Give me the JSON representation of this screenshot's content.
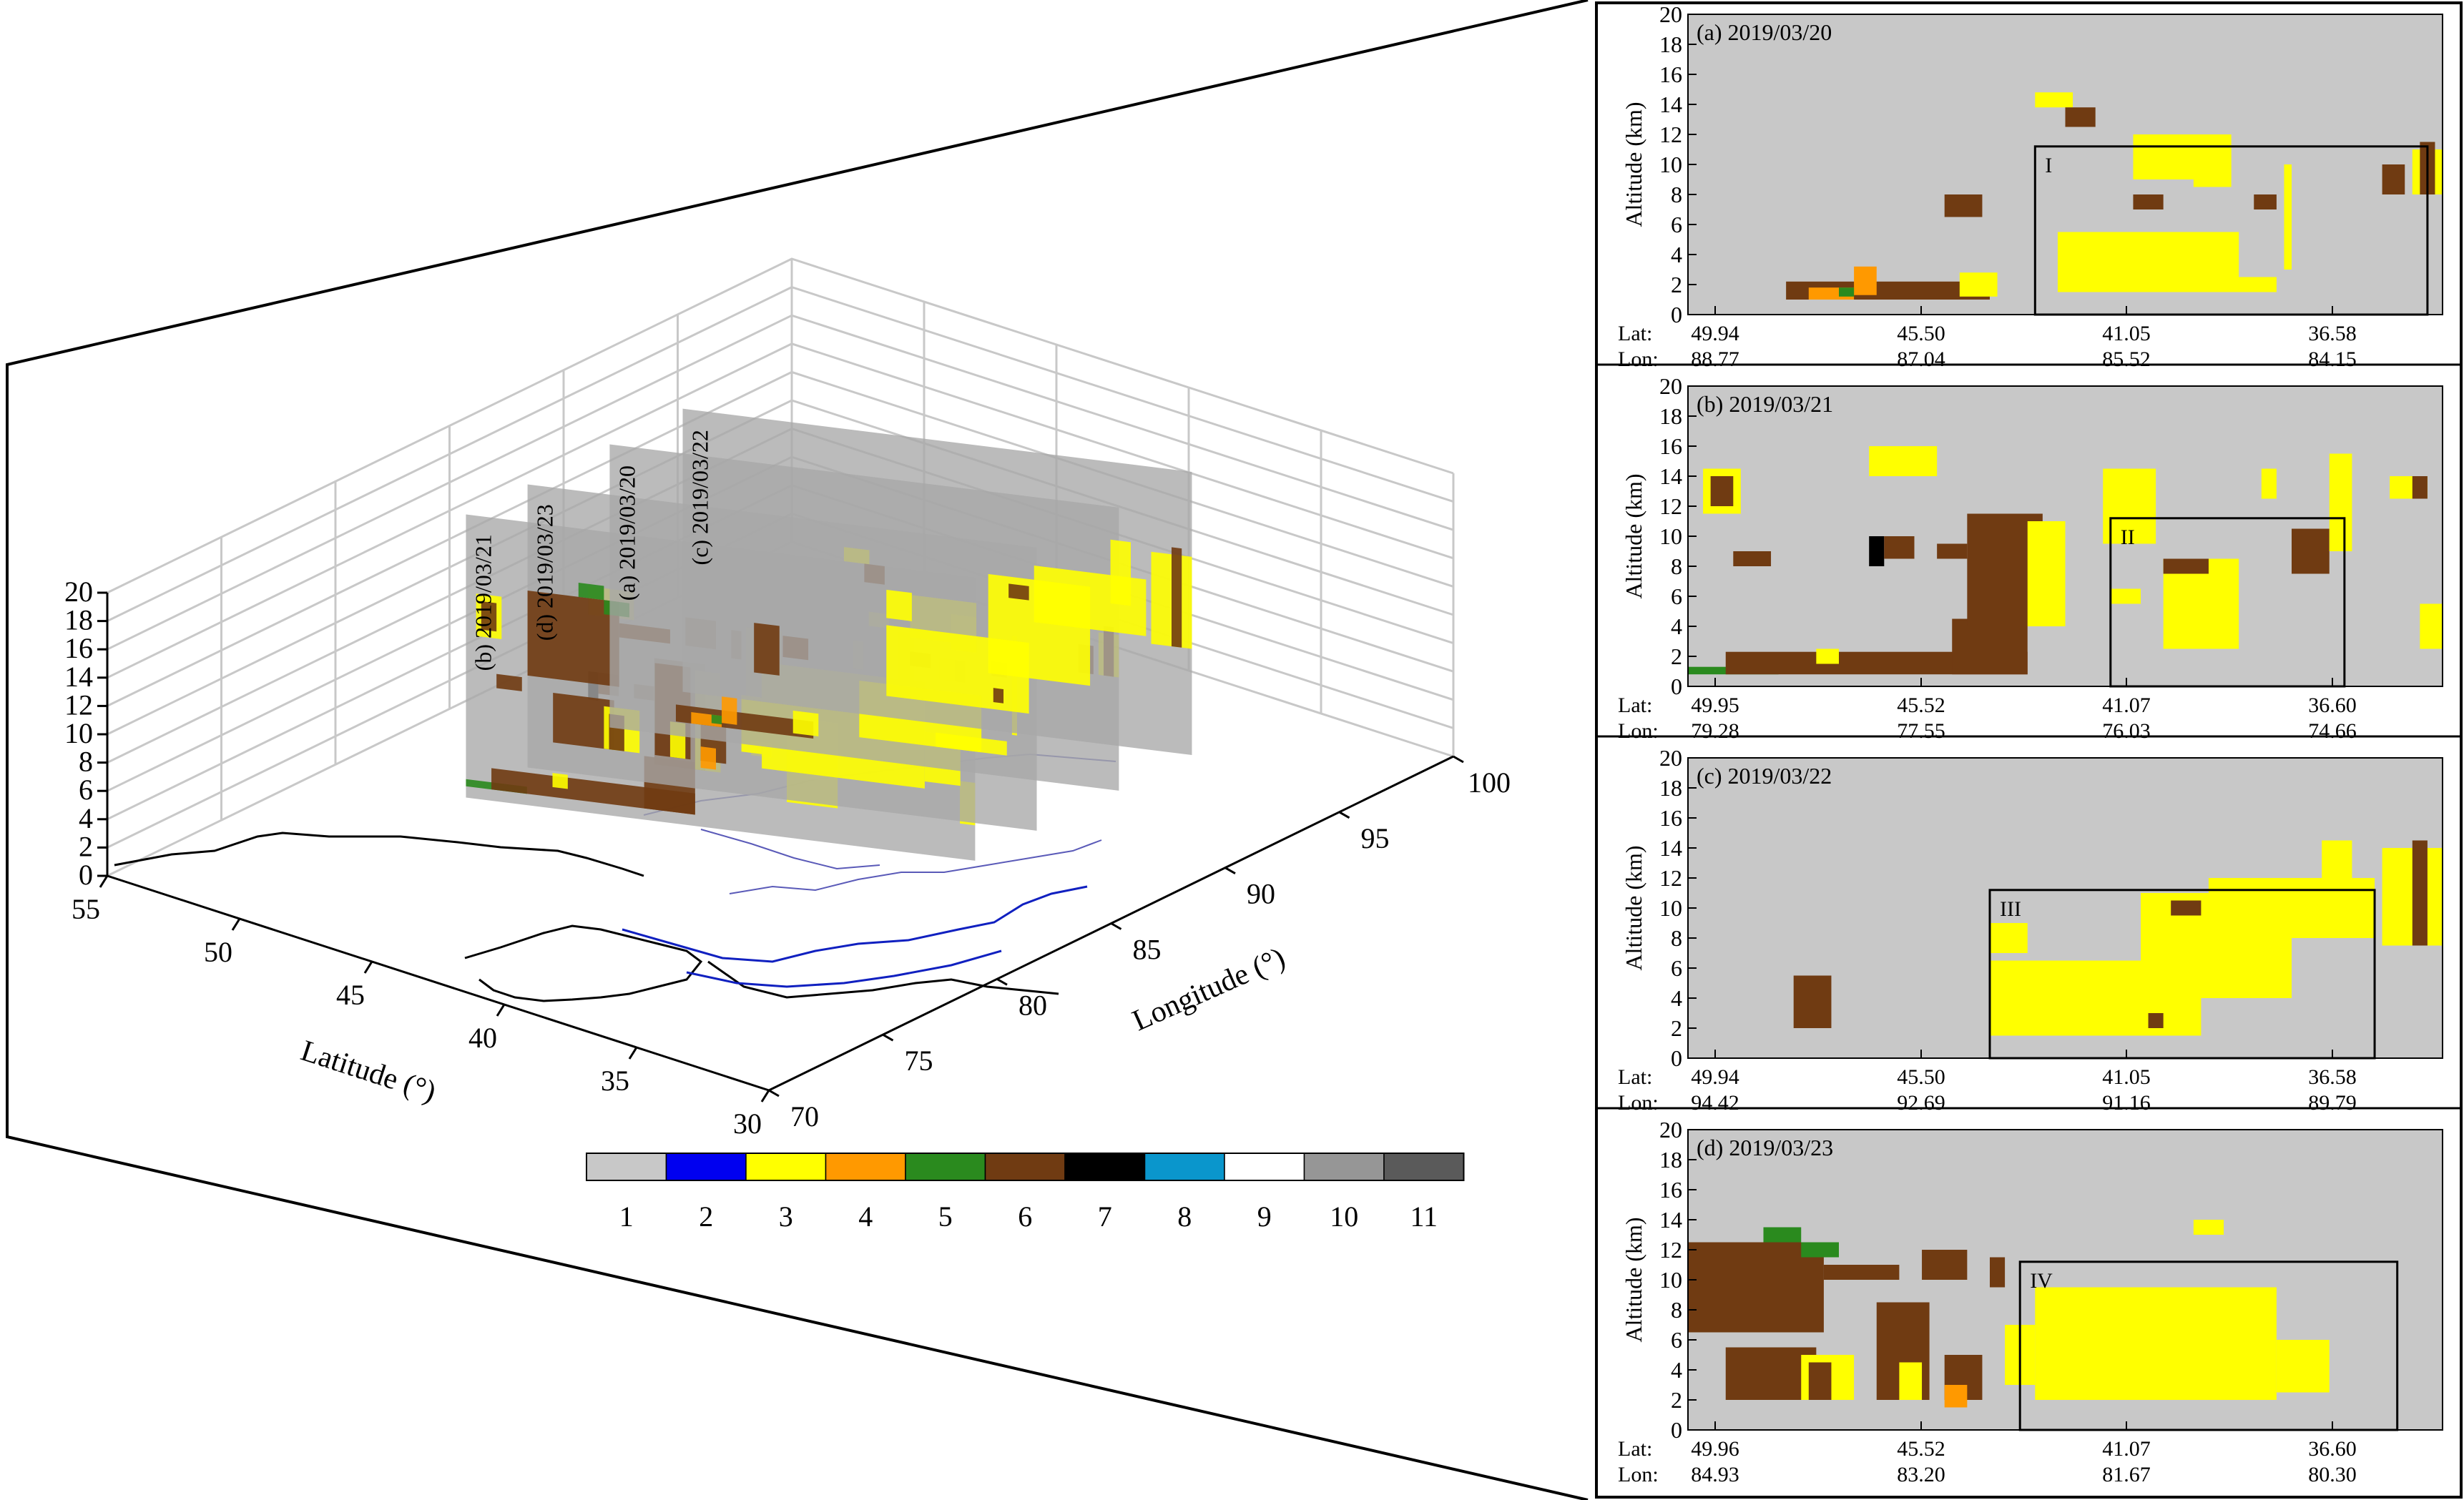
{
  "chart_data": {
    "type": "heatmap",
    "overview": {
      "type": "3d-curtain",
      "axes": {
        "xlabel": "Latitude (°)",
        "ylabel": "Longitude (°)",
        "zlabel": "",
        "latitude_ticks": [
          "30",
          "35",
          "40",
          "45",
          "50",
          "55"
        ],
        "longitude_ticks": [
          "70",
          "75",
          "80",
          "85",
          "90",
          "95",
          "100"
        ],
        "altitude_ticks": [
          "0",
          "2",
          "4",
          "6",
          "8",
          "10",
          "12",
          "14",
          "16",
          "18",
          "20"
        ],
        "latitude_range": [
          30,
          55
        ],
        "longitude_range": [
          70,
          100
        ],
        "altitude_range": [
          0,
          20
        ],
        "grid": true
      },
      "curtain_labels": [
        "(b) 2019/03/21",
        "(d) 2019/03/23",
        "(a) 2019/03/20",
        "(c) 2019/03/22"
      ]
    },
    "colorbar": {
      "categories": [
        "1",
        "2",
        "3",
        "4",
        "5",
        "6",
        "7",
        "8",
        "9",
        "10",
        "11"
      ],
      "colors": [
        "#c8c8c8",
        "#0000f0",
        "#ffff00",
        "#ff9900",
        "#2a8a1e",
        "#703b12",
        "#000000",
        "#0a96cc",
        "#ffffff",
        "#969696",
        "#5a5a5a"
      ]
    },
    "panels": [
      {
        "title": "(a) 2019/03/20",
        "ylabel": "Altitude (km)",
        "yticks": [
          "0",
          "2",
          "4",
          "6",
          "8",
          "10",
          "12",
          "14",
          "16",
          "18",
          "20"
        ],
        "ylim": [
          0,
          20
        ],
        "lat_label": "Lat:",
        "lon_label": "Lon:",
        "lat": [
          "49.94",
          "45.50",
          "41.05",
          "36.58"
        ],
        "lon": [
          "88.77",
          "87.04",
          "85.52",
          "84.15"
        ],
        "box_label": "I",
        "box": {
          "x": [
            0.46,
            0.98
          ],
          "alt": [
            0,
            11.2
          ]
        },
        "cells": [
          {
            "x": [
              0.13,
              0.4
            ],
            "alt": [
              1.0,
              2.2
            ],
            "cat": 6
          },
          {
            "x": [
              0.16,
              0.22
            ],
            "alt": [
              1.0,
              1.8
            ],
            "cat": 4
          },
          {
            "x": [
              0.22,
              0.25
            ],
            "alt": [
              1.3,
              3.2
            ],
            "cat": 4
          },
          {
            "x": [
              0.2,
              0.22
            ],
            "alt": [
              1.2,
              1.8
            ],
            "cat": 5
          },
          {
            "x": [
              0.36,
              0.41
            ],
            "alt": [
              1.2,
              2.8
            ],
            "cat": 3
          },
          {
            "x": [
              0.34,
              0.39
            ],
            "alt": [
              6.5,
              8.0
            ],
            "cat": 6
          },
          {
            "x": [
              0.46,
              0.51
            ],
            "alt": [
              13.8,
              14.8
            ],
            "cat": 3
          },
          {
            "x": [
              0.5,
              0.54
            ],
            "alt": [
              12.5,
              13.8
            ],
            "cat": 6
          },
          {
            "x": [
              0.49,
              0.73
            ],
            "alt": [
              1.5,
              5.5
            ],
            "cat": 3
          },
          {
            "x": [
              0.64,
              0.78
            ],
            "alt": [
              1.5,
              2.5
            ],
            "cat": 3
          },
          {
            "x": [
              0.59,
              0.72
            ],
            "alt": [
              9.0,
              12.0
            ],
            "cat": 3
          },
          {
            "x": [
              0.67,
              0.72
            ],
            "alt": [
              8.5,
              11.0
            ],
            "cat": 3
          },
          {
            "x": [
              0.59,
              0.63
            ],
            "alt": [
              7.0,
              8.0
            ],
            "cat": 6
          },
          {
            "x": [
              0.75,
              0.78
            ],
            "alt": [
              7.0,
              8.0
            ],
            "cat": 6
          },
          {
            "x": [
              0.79,
              0.8
            ],
            "alt": [
              3.0,
              10.0
            ],
            "cat": 3
          },
          {
            "x": [
              0.92,
              0.95
            ],
            "alt": [
              8.0,
              10.0
            ],
            "cat": 6
          },
          {
            "x": [
              0.96,
              1.0
            ],
            "alt": [
              8.0,
              11.0
            ],
            "cat": 3
          },
          {
            "x": [
              0.97,
              0.99
            ],
            "alt": [
              8.0,
              11.5
            ],
            "cat": 6
          }
        ]
      },
      {
        "title": "(b) 2019/03/21",
        "ylabel": "Altitude (km)",
        "yticks": [
          "0",
          "2",
          "4",
          "6",
          "8",
          "10",
          "12",
          "14",
          "16",
          "18",
          "20"
        ],
        "ylim": [
          0,
          20
        ],
        "lat_label": "Lat:",
        "lon_label": "Lon:",
        "lat": [
          "49.95",
          "45.52",
          "41.07",
          "36.60"
        ],
        "lon": [
          "79.28",
          "77.55",
          "76.03",
          "74.66"
        ],
        "box_label": "II",
        "box": {
          "x": [
            0.56,
            0.87
          ],
          "alt": [
            0,
            11.2
          ]
        },
        "cells": [
          {
            "x": [
              0.0,
              0.12
            ],
            "alt": [
              0.8,
              1.3
            ],
            "cat": 5
          },
          {
            "x": [
              0.05,
              0.45
            ],
            "alt": [
              0.8,
              2.3
            ],
            "cat": 6
          },
          {
            "x": [
              0.17,
              0.2
            ],
            "alt": [
              1.5,
              2.5
            ],
            "cat": 3
          },
          {
            "x": [
              0.35,
              0.45
            ],
            "alt": [
              0.8,
              4.5
            ],
            "cat": 6
          },
          {
            "x": [
              0.37,
              0.47
            ],
            "alt": [
              4.0,
              11.5
            ],
            "cat": 6
          },
          {
            "x": [
              0.45,
              0.5
            ],
            "alt": [
              4.0,
              11.0
            ],
            "cat": 3
          },
          {
            "x": [
              0.02,
              0.07
            ],
            "alt": [
              11.5,
              14.5
            ],
            "cat": 3
          },
          {
            "x": [
              0.03,
              0.06
            ],
            "alt": [
              12.0,
              14.0
            ],
            "cat": 6
          },
          {
            "x": [
              0.06,
              0.11
            ],
            "alt": [
              8.0,
              9.0
            ],
            "cat": 6
          },
          {
            "x": [
              0.24,
              0.26
            ],
            "alt": [
              8.0,
              10.0
            ],
            "cat": 7
          },
          {
            "x": [
              0.26,
              0.3
            ],
            "alt": [
              8.5,
              10.0
            ],
            "cat": 6
          },
          {
            "x": [
              0.33,
              0.37
            ],
            "alt": [
              8.5,
              9.5
            ],
            "cat": 6
          },
          {
            "x": [
              0.24,
              0.33
            ],
            "alt": [
              14.0,
              16.0
            ],
            "cat": 3
          },
          {
            "x": [
              0.55,
              0.62
            ],
            "alt": [
              9.5,
              14.5
            ],
            "cat": 3
          },
          {
            "x": [
              0.56,
              0.6
            ],
            "alt": [
              5.5,
              6.5
            ],
            "cat": 3
          },
          {
            "x": [
              0.63,
              0.73
            ],
            "alt": [
              2.5,
              8.5
            ],
            "cat": 3
          },
          {
            "x": [
              0.63,
              0.69
            ],
            "alt": [
              7.5,
              8.5
            ],
            "cat": 6
          },
          {
            "x": [
              0.76,
              0.78
            ],
            "alt": [
              12.5,
              14.5
            ],
            "cat": 3
          },
          {
            "x": [
              0.8,
              0.85
            ],
            "alt": [
              7.5,
              10.5
            ],
            "cat": 6
          },
          {
            "x": [
              0.85,
              0.88
            ],
            "alt": [
              9.0,
              15.5
            ],
            "cat": 3
          },
          {
            "x": [
              0.97,
              1.0
            ],
            "alt": [
              2.5,
              5.5
            ],
            "cat": 3
          },
          {
            "x": [
              0.93,
              0.98
            ],
            "alt": [
              12.5,
              14.0
            ],
            "cat": 3
          },
          {
            "x": [
              0.96,
              0.98
            ],
            "alt": [
              12.5,
              14.0
            ],
            "cat": 6
          }
        ]
      },
      {
        "title": "(c) 2019/03/22",
        "ylabel": "Altitude (km)",
        "yticks": [
          "0",
          "2",
          "4",
          "6",
          "8",
          "10",
          "12",
          "14",
          "16",
          "18",
          "20"
        ],
        "ylim": [
          0,
          20
        ],
        "lat_label": "Lat:",
        "lon_label": "Lon:",
        "lat": [
          "49.94",
          "45.50",
          "41.05",
          "36.58"
        ],
        "lon": [
          "94.42",
          "92.69",
          "91.16",
          "89.79"
        ],
        "box_label": "III",
        "box": {
          "x": [
            0.4,
            0.91
          ],
          "alt": [
            0,
            11.2
          ]
        },
        "cells": [
          {
            "x": [
              0.14,
              0.19
            ],
            "alt": [
              2.0,
              5.5
            ],
            "cat": 6
          },
          {
            "x": [
              0.4,
              0.45
            ],
            "alt": [
              7.0,
              9.0
            ],
            "cat": 3
          },
          {
            "x": [
              0.4,
              0.68
            ],
            "alt": [
              1.5,
              6.5
            ],
            "cat": 3
          },
          {
            "x": [
              0.6,
              0.8
            ],
            "alt": [
              4.0,
              11.0
            ],
            "cat": 3
          },
          {
            "x": [
              0.69,
              0.91
            ],
            "alt": [
              8.0,
              12.0
            ],
            "cat": 3
          },
          {
            "x": [
              0.84,
              0.88
            ],
            "alt": [
              10.0,
              14.5
            ],
            "cat": 3
          },
          {
            "x": [
              0.64,
              0.68
            ],
            "alt": [
              9.5,
              10.5
            ],
            "cat": 6
          },
          {
            "x": [
              0.61,
              0.63
            ],
            "alt": [
              2.0,
              3.0
            ],
            "cat": 6
          },
          {
            "x": [
              0.92,
              1.0
            ],
            "alt": [
              7.5,
              14.0
            ],
            "cat": 3
          },
          {
            "x": [
              0.96,
              0.98
            ],
            "alt": [
              7.5,
              14.5
            ],
            "cat": 6
          }
        ]
      },
      {
        "title": "(d) 2019/03/23",
        "ylabel": "Altitude (km)",
        "yticks": [
          "0",
          "2",
          "4",
          "6",
          "8",
          "10",
          "12",
          "14",
          "16",
          "18",
          "20"
        ],
        "ylim": [
          0,
          20
        ],
        "lat_label": "Lat:",
        "lon_label": "Lon:",
        "lat": [
          "49.96",
          "45.52",
          "41.07",
          "36.60"
        ],
        "lon": [
          "84.93",
          "83.20",
          "81.67",
          "80.30"
        ],
        "box_label": "IV",
        "box": {
          "x": [
            0.44,
            0.94
          ],
          "alt": [
            0,
            11.2
          ]
        },
        "cells": [
          {
            "x": [
              0.0,
              0.18
            ],
            "alt": [
              6.5,
              12.5
            ],
            "cat": 6
          },
          {
            "x": [
              0.05,
              0.17
            ],
            "alt": [
              2.0,
              5.5
            ],
            "cat": 6
          },
          {
            "x": [
              0.15,
              0.22
            ],
            "alt": [
              2.0,
              5.0
            ],
            "cat": 3
          },
          {
            "x": [
              0.16,
              0.19
            ],
            "alt": [
              2.0,
              4.5
            ],
            "cat": 6
          },
          {
            "x": [
              0.1,
              0.15
            ],
            "alt": [
              12.5,
              13.5
            ],
            "cat": 5
          },
          {
            "x": [
              0.15,
              0.2
            ],
            "alt": [
              11.5,
              12.5
            ],
            "cat": 5
          },
          {
            "x": [
              0.18,
              0.28
            ],
            "alt": [
              10.0,
              11.0
            ],
            "cat": 6
          },
          {
            "x": [
              0.25,
              0.32
            ],
            "alt": [
              2.0,
              8.5
            ],
            "cat": 6
          },
          {
            "x": [
              0.28,
              0.31
            ],
            "alt": [
              2.0,
              4.5
            ],
            "cat": 3
          },
          {
            "x": [
              0.31,
              0.37
            ],
            "alt": [
              10.0,
              12.0
            ],
            "cat": 6
          },
          {
            "x": [
              0.34,
              0.39
            ],
            "alt": [
              2.0,
              5.0
            ],
            "cat": 6
          },
          {
            "x": [
              0.34,
              0.37
            ],
            "alt": [
              1.5,
              3.0
            ],
            "cat": 4
          },
          {
            "x": [
              0.4,
              0.42
            ],
            "alt": [
              9.5,
              11.5
            ],
            "cat": 6
          },
          {
            "x": [
              0.42,
              0.46
            ],
            "alt": [
              3.0,
              7.0
            ],
            "cat": 3
          },
          {
            "x": [
              0.46,
              0.78
            ],
            "alt": [
              2.0,
              9.5
            ],
            "cat": 3
          },
          {
            "x": [
              0.78,
              0.85
            ],
            "alt": [
              2.5,
              6.0
            ],
            "cat": 3
          },
          {
            "x": [
              0.67,
              0.71
            ],
            "alt": [
              13.0,
              14.0
            ],
            "cat": 3
          }
        ]
      }
    ]
  }
}
